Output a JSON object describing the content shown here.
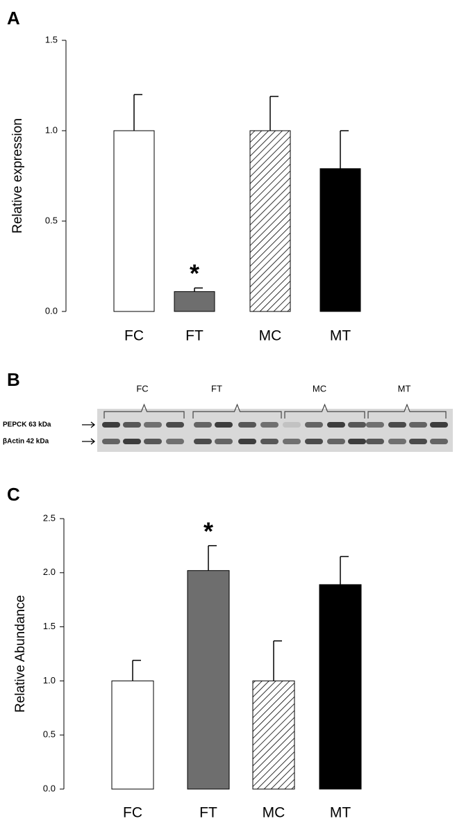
{
  "panel_labels": [
    "A",
    "B",
    "C"
  ],
  "blot": {
    "groups": [
      "FC",
      "FT",
      "MC",
      "MT"
    ],
    "rows": [
      "PEPCK 63 kDa",
      "βActin 42 kDa"
    ]
  },
  "chart_data": [
    {
      "type": "bar",
      "y_label": "Relative expression",
      "categories": [
        "FC",
        "FT",
        "MC",
        "MT"
      ],
      "values": [
        1.0,
        0.11,
        1.0,
        0.79
      ],
      "errors": [
        0.2,
        0.02,
        0.19,
        0.21
      ],
      "fills": [
        "#ffffff",
        "#6e6e6e",
        "hatch",
        "#000000"
      ],
      "ylim": [
        0,
        1.5
      ],
      "yticks": [
        {
          "value": 0,
          "label": "0.0"
        },
        0.5,
        {
          "value": 1,
          "label": "1.0"
        },
        1.5
      ],
      "annotations": [
        {
          "text": "*",
          "category": "FT"
        }
      ]
    },
    {
      "type": "bar",
      "y_label": "Relative Abundance",
      "categories": [
        "FC",
        "FT",
        "MC",
        "MT"
      ],
      "values": [
        1.0,
        2.02,
        1.0,
        1.89
      ],
      "errors": [
        0.19,
        0.23,
        0.37,
        0.26
      ],
      "fills": [
        "#ffffff",
        "#6e6e6e",
        "hatch",
        "#000000"
      ],
      "ylim": [
        0,
        2.5
      ],
      "yticks": [
        {
          "value": 0,
          "label": "0.0"
        },
        0.5,
        {
          "value": 1,
          "label": "1.0"
        },
        1.5,
        {
          "value": 2,
          "label": "2.0"
        },
        2.5
      ],
      "annotations": [
        {
          "text": "*",
          "category": "FT"
        }
      ]
    }
  ]
}
